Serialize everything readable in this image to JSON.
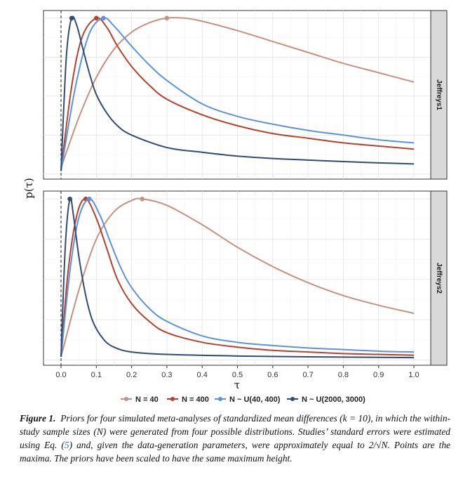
{
  "chart_data": {
    "type": "line",
    "x_label": "τ",
    "y_label": "p(τ)",
    "x_range": [
      0,
      1.0
    ],
    "x_ticks": [
      "0.0",
      "0.1",
      "0.2",
      "0.3",
      "0.4",
      "0.5",
      "0.6",
      "0.7",
      "0.8",
      "0.9",
      "1.0"
    ],
    "vline_x": 0,
    "legend_position": "bottom",
    "series_meta": [
      {
        "name": "N = 40",
        "color": "#c8907f"
      },
      {
        "name": "N = 400",
        "color": "#b8412c"
      },
      {
        "name": "N ~ U(40, 400)",
        "color": "#5b93de"
      },
      {
        "name": "N ~ U(2000, 3000)",
        "color": "#314c72"
      }
    ],
    "panels": [
      {
        "label": "Jeffreys1",
        "series": [
          {
            "name": "N = 40",
            "max_x": 0.3,
            "points": [
              [
                0,
                0.04
              ],
              [
                0.05,
                0.36
              ],
              [
                0.1,
                0.62
              ],
              [
                0.15,
                0.8
              ],
              [
                0.2,
                0.91
              ],
              [
                0.25,
                0.97
              ],
              [
                0.3,
                1.0
              ],
              [
                0.35,
                1.0
              ],
              [
                0.4,
                0.98
              ],
              [
                0.5,
                0.92
              ],
              [
                0.6,
                0.85
              ],
              [
                0.7,
                0.78
              ],
              [
                0.8,
                0.71
              ],
              [
                0.9,
                0.65
              ],
              [
                1.0,
                0.59
              ]
            ]
          },
          {
            "name": "N = 400",
            "max_x": 0.1,
            "points": [
              [
                0,
                0.02
              ],
              [
                0.03,
                0.56
              ],
              [
                0.06,
                0.88
              ],
              [
                0.1,
                1.0
              ],
              [
                0.13,
                0.94
              ],
              [
                0.16,
                0.82
              ],
              [
                0.2,
                0.69
              ],
              [
                0.25,
                0.57
              ],
              [
                0.3,
                0.48
              ],
              [
                0.4,
                0.38
              ],
              [
                0.5,
                0.31
              ],
              [
                0.6,
                0.26
              ],
              [
                0.7,
                0.23
              ],
              [
                0.8,
                0.2
              ],
              [
                0.9,
                0.18
              ],
              [
                1.0,
                0.16
              ]
            ]
          },
          {
            "name": "N ~ U(40, 400)",
            "max_x": 0.12,
            "points": [
              [
                0,
                0.02
              ],
              [
                0.04,
                0.55
              ],
              [
                0.08,
                0.9
              ],
              [
                0.12,
                1.0
              ],
              [
                0.15,
                0.95
              ],
              [
                0.2,
                0.82
              ],
              [
                0.25,
                0.7
              ],
              [
                0.3,
                0.6
              ],
              [
                0.4,
                0.45
              ],
              [
                0.5,
                0.37
              ],
              [
                0.6,
                0.32
              ],
              [
                0.7,
                0.28
              ],
              [
                0.8,
                0.25
              ],
              [
                0.9,
                0.22
              ],
              [
                1.0,
                0.2
              ]
            ]
          },
          {
            "name": "N ~ U(2000, 3000)",
            "max_x": 0.03,
            "points": [
              [
                0,
                0.02
              ],
              [
                0.015,
                0.75
              ],
              [
                0.03,
                1.0
              ],
              [
                0.045,
                0.95
              ],
              [
                0.06,
                0.82
              ],
              [
                0.08,
                0.65
              ],
              [
                0.1,
                0.51
              ],
              [
                0.13,
                0.39
              ],
              [
                0.16,
                0.31
              ],
              [
                0.2,
                0.25
              ],
              [
                0.3,
                0.17
              ],
              [
                0.4,
                0.14
              ],
              [
                0.5,
                0.115
              ],
              [
                0.6,
                0.1
              ],
              [
                0.7,
                0.09
              ],
              [
                0.8,
                0.08
              ],
              [
                0.9,
                0.072
              ],
              [
                1.0,
                0.065
              ]
            ]
          }
        ]
      },
      {
        "label": "Jeffreys2",
        "series": [
          {
            "name": "N = 40",
            "max_x": 0.23,
            "points": [
              [
                0,
                0.02
              ],
              [
                0.05,
                0.43
              ],
              [
                0.1,
                0.75
              ],
              [
                0.15,
                0.92
              ],
              [
                0.2,
                0.99
              ],
              [
                0.23,
                1.0
              ],
              [
                0.3,
                0.96
              ],
              [
                0.4,
                0.84
              ],
              [
                0.5,
                0.7
              ],
              [
                0.6,
                0.58
              ],
              [
                0.7,
                0.48
              ],
              [
                0.8,
                0.4
              ],
              [
                0.9,
                0.34
              ],
              [
                1.0,
                0.29
              ]
            ]
          },
          {
            "name": "N = 400",
            "max_x": 0.07,
            "points": [
              [
                0,
                0.02
              ],
              [
                0.02,
                0.55
              ],
              [
                0.045,
                0.9
              ],
              [
                0.07,
                1.0
              ],
              [
                0.1,
                0.88
              ],
              [
                0.13,
                0.69
              ],
              [
                0.16,
                0.5
              ],
              [
                0.2,
                0.35
              ],
              [
                0.25,
                0.24
              ],
              [
                0.3,
                0.17
              ],
              [
                0.4,
                0.11
              ],
              [
                0.5,
                0.08
              ],
              [
                0.6,
                0.06
              ],
              [
                0.7,
                0.05
              ],
              [
                0.8,
                0.04
              ],
              [
                0.9,
                0.035
              ],
              [
                1.0,
                0.03
              ]
            ]
          },
          {
            "name": "N ~ U(40, 400)",
            "max_x": 0.08,
            "points": [
              [
                0,
                0.02
              ],
              [
                0.025,
                0.55
              ],
              [
                0.05,
                0.88
              ],
              [
                0.08,
                1.0
              ],
              [
                0.11,
                0.9
              ],
              [
                0.14,
                0.73
              ],
              [
                0.17,
                0.57
              ],
              [
                0.2,
                0.45
              ],
              [
                0.25,
                0.32
              ],
              [
                0.3,
                0.24
              ],
              [
                0.4,
                0.15
              ],
              [
                0.5,
                0.11
              ],
              [
                0.6,
                0.09
              ],
              [
                0.7,
                0.075
              ],
              [
                0.8,
                0.065
              ],
              [
                0.9,
                0.055
              ],
              [
                1.0,
                0.05
              ]
            ]
          },
          {
            "name": "N ~ U(2000, 3000)",
            "max_x": 0.025,
            "points": [
              [
                0,
                0.02
              ],
              [
                0.012,
                0.7
              ],
              [
                0.025,
                1.0
              ],
              [
                0.035,
                0.9
              ],
              [
                0.05,
                0.65
              ],
              [
                0.07,
                0.4
              ],
              [
                0.09,
                0.24
              ],
              [
                0.12,
                0.13
              ],
              [
                0.15,
                0.08
              ],
              [
                0.2,
                0.05
              ],
              [
                0.3,
                0.035
              ],
              [
                0.5,
                0.025
              ],
              [
                0.7,
                0.02
              ],
              [
                1.0,
                0.015
              ]
            ]
          }
        ]
      }
    ]
  },
  "caption": {
    "figure_label": "Figure 1.",
    "text_before_ref": "Priors for four simulated meta-analyses of standardized mean differences (k = 10), in which the within-study sample sizes (N) were generated from four possible distributions. Studies’ standard errors were estimated using Eq. (",
    "ref": "5",
    "text_after_ref": ") and, given the data-generation parameters, were approximately equal to 2/√N. Points are the maxima. The priors have been scaled to have the same maximum height."
  }
}
